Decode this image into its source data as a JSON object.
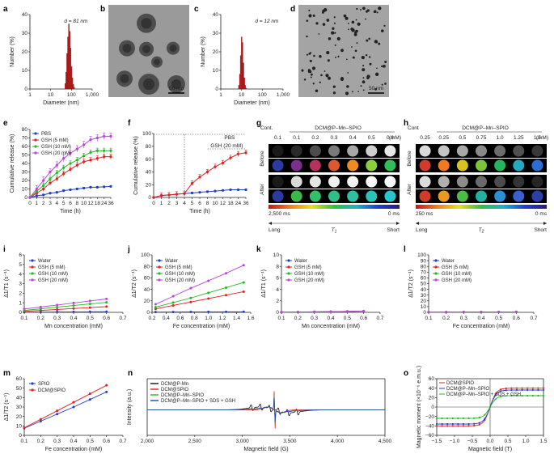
{
  "figure": {
    "panel_labels": [
      "a",
      "b",
      "c",
      "d",
      "e",
      "f",
      "g",
      "h",
      "i",
      "j",
      "k",
      "l",
      "m",
      "n",
      "o"
    ]
  },
  "images": {
    "b": {
      "scalebar": "50 nm"
    },
    "d": {
      "scalebar": "50 nm"
    },
    "g": {
      "cont_label": "Cont.",
      "group_label": "DCM@P–Mn–SPIO",
      "concentrations": [
        "0.1",
        "0.1",
        "0.2",
        "0.3",
        "0.4",
        "0.5",
        "0.6"
      ],
      "unit": "(mM)",
      "row_labels": [
        "Before",
        "After"
      ],
      "colorbar_left": "2,500 ms",
      "colorbar_right": "0 ms",
      "scale_left": "Long",
      "scale_right": "Short",
      "scale_symbol": "T",
      "scale_sub": "1",
      "gray_before": [
        "#1a1a1a",
        "#2a2a2a",
        "#4c4c4c",
        "#7a7a7a",
        "#a8a8a8",
        "#cfcfcf",
        "#e8e8e8"
      ],
      "gray_after": [
        "#1a1a1a",
        "#d9d9d9",
        "#e6e6e6",
        "#efefef",
        "#f4f4f4",
        "#f8f8f8",
        "#fbfbfb"
      ],
      "color_before": [
        "#2b3a9e",
        "#7a2f8a",
        "#b83060",
        "#e0562e",
        "#f08b20",
        "#8ccf3c",
        "#2fbf5a"
      ],
      "color_after": [
        "#2b3a9e",
        "#3cb84a",
        "#33c06a",
        "#2fbf86",
        "#2cc2a0",
        "#29c4b8",
        "#25c6cc"
      ]
    },
    "h": {
      "cont_label": "Cont",
      "group_label": "DCM@P–Mn–SPIO",
      "concentrations": [
        "0.25",
        "0.25",
        "0.5",
        "0.75",
        "1.0",
        "1.25",
        "1.5"
      ],
      "unit": "(mM)",
      "row_labels": [
        "Before",
        "After"
      ],
      "colorbar_left": "250 ms",
      "colorbar_right": "0 ms",
      "scale_left": "Long",
      "scale_right": "Short",
      "scale_symbol": "T",
      "scale_sub": "2",
      "gray_before": [
        "#dcdcdc",
        "#c4c4c4",
        "#a8a8a8",
        "#8a8a8a",
        "#6c6c6c",
        "#505050",
        "#383838"
      ],
      "gray_after": [
        "#dcdcdc",
        "#b0b0b0",
        "#8c8c8c",
        "#6a6a6a",
        "#4c4c4c",
        "#343434",
        "#262626"
      ],
      "color_before": [
        "#d23a2a",
        "#f07a1c",
        "#d9c21e",
        "#7cc43a",
        "#27b45e",
        "#22a9c4",
        "#2a6ed4"
      ],
      "color_after": [
        "#d23a2a",
        "#e89a20",
        "#4cbc44",
        "#22b0a0",
        "#2a8fd4",
        "#3a60d0",
        "#2c3ea8"
      ]
    }
  },
  "chart_data": [
    {
      "id": "a",
      "type": "bar",
      "annotation": "d = 81 nm",
      "xlabel": "Diameter (nm)",
      "ylabel": "Number (%)",
      "xscale": "log",
      "xlim": [
        1,
        1000
      ],
      "ylim": [
        0,
        40
      ],
      "xticks": [
        "1",
        "10",
        "100",
        "1,000"
      ],
      "yticks": [
        "0",
        "10",
        "20",
        "30",
        "40"
      ],
      "color": "#cc1f1f",
      "x": [
        50.7,
        55.9,
        61.7,
        68.1,
        75.1,
        82.9,
        91.5,
        101.0,
        111.4,
        122.9,
        135.7
      ],
      "values": [
        3,
        9,
        19,
        28,
        35,
        31,
        22,
        12,
        6,
        2.5,
        1
      ]
    },
    {
      "id": "c",
      "type": "bar",
      "annotation": "d = 12 nm",
      "xlabel": "Diameter (nm)",
      "ylabel": "Number (%)",
      "xscale": "log",
      "xlim": [
        1,
        1000
      ],
      "ylim": [
        0,
        40
      ],
      "xticks": [
        "1",
        "10",
        "100",
        "1,000"
      ],
      "yticks": [
        "0",
        "10",
        "20",
        "30",
        "40"
      ],
      "color": "#cc1f1f",
      "x": [
        7.5,
        8.3,
        9.1,
        10.1,
        11.1,
        12.3,
        13.6,
        15.0,
        16.5
      ],
      "values": [
        2,
        8,
        18,
        28,
        25,
        14,
        6,
        2,
        0.5
      ]
    },
    {
      "id": "e",
      "type": "line",
      "xlabel": "Time (h)",
      "ylabel": "Cumulative release (%)",
      "ylim": [
        0,
        80
      ],
      "categories": [
        "0",
        "1",
        "2",
        "3",
        "4",
        "5",
        "6",
        "8",
        "10",
        "12",
        "18",
        "24",
        "36"
      ],
      "yticks": [
        "0",
        "10",
        "20",
        "30",
        "40",
        "50",
        "60",
        "70",
        "80"
      ],
      "legend_position": "top-left",
      "series": [
        {
          "name": "PBS",
          "color": "#2140c8",
          "values": [
            0,
            2,
            3,
            5,
            6,
            8,
            9,
            10,
            11,
            12,
            12,
            12.5,
            13
          ],
          "err": 1
        },
        {
          "name": "GSH (5 mM)",
          "color": "#e02020",
          "values": [
            0,
            5,
            10,
            17,
            22,
            28,
            33,
            38,
            42,
            44,
            46,
            48,
            48
          ],
          "err": 3
        },
        {
          "name": "GSH (10 mM)",
          "color": "#22b826",
          "values": [
            0,
            7,
            14,
            22,
            29,
            35,
            40,
            44,
            49,
            53,
            55,
            55,
            55
          ],
          "err": 3
        },
        {
          "name": "GSH (20 mM)",
          "color": "#b845d8",
          "values": [
            0,
            10,
            20,
            30,
            38,
            46,
            52,
            57,
            62,
            68,
            70,
            72,
            72
          ],
          "err": 4
        }
      ]
    },
    {
      "id": "f",
      "type": "line",
      "xlabel": "Time (h)",
      "ylabel": "Cumulative release (%)",
      "ylim": [
        0,
        100
      ],
      "categories": [
        "0",
        "1",
        "2",
        "3",
        "4",
        "5",
        "6",
        "8",
        "10",
        "12",
        "18",
        "24",
        "36"
      ],
      "yticks": [
        "0",
        "20",
        "40",
        "60",
        "80",
        "100"
      ],
      "annotations": [
        "PBS",
        "GSH (20 mM)"
      ],
      "series": [
        {
          "name": "PBS",
          "color": "#2140c8",
          "values": [
            0,
            3,
            4,
            5,
            6,
            7,
            8,
            9,
            10,
            11,
            12,
            12,
            12
          ],
          "err": 1
        },
        {
          "name": "GSH (20 mM)",
          "color": "#e02020",
          "values": [
            0,
            3,
            4,
            5,
            6,
            22,
            32,
            40,
            48,
            54,
            62,
            68,
            70
          ],
          "err": 4
        }
      ]
    },
    {
      "id": "i",
      "type": "line",
      "xlabel": "Mn concentration (mM)",
      "ylabel": "Δ1/T1 (s⁻¹)",
      "xlim": [
        0.1,
        0.7
      ],
      "ylim": [
        0,
        6
      ],
      "xticks": [
        "0.1",
        "0.2",
        "0.3",
        "0.4",
        "0.5",
        "0.6",
        "0.7"
      ],
      "yticks": [
        "0",
        "1",
        "2",
        "3",
        "4",
        "5",
        "6"
      ],
      "legend_position": "top-left",
      "x": [
        0.1,
        0.2,
        0.3,
        0.4,
        0.5,
        0.6
      ],
      "series": [
        {
          "name": "Water",
          "color": "#2140c8",
          "values": [
            0.02,
            0.03,
            0.04,
            0.05,
            0.06,
            0.07
          ]
        },
        {
          "name": "GSH (5 mM)",
          "color": "#e02020",
          "values": [
            0.1,
            0.2,
            0.3,
            0.4,
            0.5,
            0.6
          ]
        },
        {
          "name": "GSH (10 mM)",
          "color": "#22b826",
          "values": [
            0.2,
            0.37,
            0.54,
            0.71,
            0.88,
            1.05
          ]
        },
        {
          "name": "GSH (20 mM)",
          "color": "#b845d8",
          "values": [
            0.35,
            0.56,
            0.77,
            0.98,
            1.19,
            1.4
          ]
        }
      ]
    },
    {
      "id": "j",
      "type": "line",
      "xlabel": "Fe concentration (mM)",
      "ylabel": "Δ1/T2 (s⁻¹)",
      "xlim": [
        0.2,
        1.6
      ],
      "ylim": [
        0,
        100
      ],
      "xticks": [
        "0.2",
        "0.4",
        "0.6",
        "0.8",
        "1.0",
        "1.2",
        "1.4",
        "1.6"
      ],
      "yticks": [
        "0",
        "20",
        "40",
        "60",
        "80",
        "100"
      ],
      "legend_position": "top-left",
      "x": [
        0.25,
        0.5,
        0.75,
        1.0,
        1.25,
        1.5
      ],
      "series": [
        {
          "name": "Water",
          "color": "#2140c8",
          "values": [
            0.5,
            0.6,
            0.7,
            0.8,
            0.9,
            1.0
          ]
        },
        {
          "name": "GSH (5 mM)",
          "color": "#e02020",
          "values": [
            6,
            12,
            18,
            24,
            30,
            36
          ]
        },
        {
          "name": "GSH (10 mM)",
          "color": "#22b826",
          "values": [
            9,
            17,
            25,
            34,
            43,
            52
          ]
        },
        {
          "name": "GSH (20 mM)",
          "color": "#b845d8",
          "values": [
            14,
            28,
            42,
            55,
            68,
            82
          ]
        }
      ]
    },
    {
      "id": "k",
      "type": "line",
      "xlabel": "Mn concentration (mM)",
      "ylabel": "Δ1/T1 (s⁻¹)",
      "xlim": [
        0.1,
        0.7
      ],
      "ylim": [
        0,
        10
      ],
      "xticks": [
        "0.1",
        "0.2",
        "0.3",
        "0.4",
        "0.5",
        "0.6",
        "0.7"
      ],
      "yticks": [
        "0",
        "2",
        "4",
        "6",
        "8",
        "10"
      ],
      "legend_position": "top-left",
      "x": [
        0.1,
        0.2,
        0.3,
        0.4,
        0.5,
        0.6
      ],
      "series": [
        {
          "name": "Water",
          "color": "#2140c8",
          "values": [
            0.02,
            0.05,
            0.08,
            0.11,
            0.15,
            0.2
          ]
        },
        {
          "name": "GSH (5 mM)",
          "color": "#e02020",
          "values": [
            0.03,
            0.06,
            0.09,
            0.12,
            0.16,
            0.21
          ]
        },
        {
          "name": "GSH (10 mM)",
          "color": "#22b826",
          "values": [
            0.03,
            0.06,
            0.09,
            0.12,
            0.16,
            0.21
          ]
        },
        {
          "name": "GSH (20 mM)",
          "color": "#b845d8",
          "values": [
            0.03,
            0.06,
            0.1,
            0.13,
            0.17,
            0.22
          ]
        }
      ]
    },
    {
      "id": "l",
      "type": "line",
      "xlabel": "Fe concentration (mM)",
      "ylabel": "Δ1/T2 (s⁻¹)",
      "xlim": [
        0.1,
        0.7
      ],
      "ylim": [
        0,
        100
      ],
      "xticks": [
        "0.1",
        "0.2",
        "0.3",
        "0.4",
        "0.5",
        "0.6",
        "0.7"
      ],
      "yticks": [
        "0",
        "10",
        "20",
        "30",
        "40",
        "50",
        "60",
        "70",
        "80",
        "90",
        "100"
      ],
      "legend_position": "top-left",
      "x": [
        0.1,
        0.2,
        0.3,
        0.4,
        0.5,
        0.6
      ],
      "series": [
        {
          "name": "Water",
          "color": "#2140c8",
          "values": [
            0.3,
            0.4,
            0.5,
            0.6,
            0.7,
            0.8
          ]
        },
        {
          "name": "GSH (5 mM)",
          "color": "#e02020",
          "values": [
            0.3,
            0.4,
            0.5,
            0.6,
            0.7,
            0.8
          ]
        },
        {
          "name": "GSH (10 mM)",
          "color": "#22b826",
          "values": [
            0.3,
            0.4,
            0.5,
            0.6,
            0.7,
            0.8
          ]
        },
        {
          "name": "GSH (20 mM)",
          "color": "#b845d8",
          "values": [
            0.3,
            0.4,
            0.5,
            0.6,
            0.7,
            0.8
          ]
        }
      ]
    },
    {
      "id": "m",
      "type": "line",
      "xlabel": "Fe concentration (mM)",
      "ylabel": "Δ1/T2 (s⁻¹)",
      "xlim": [
        0.1,
        0.7
      ],
      "ylim": [
        0,
        60
      ],
      "xticks": [
        "0.1",
        "0.2",
        "0.3",
        "0.4",
        "0.5",
        "0.6",
        "0.7"
      ],
      "yticks": [
        "0",
        "10",
        "20",
        "30",
        "40",
        "50",
        "60"
      ],
      "legend_position": "top-left",
      "x": [
        0.1,
        0.2,
        0.3,
        0.4,
        0.5,
        0.6
      ],
      "series": [
        {
          "name": "SPIO",
          "color": "#2140c8",
          "values": [
            7.5,
            15,
            22.5,
            30,
            38,
            46
          ]
        },
        {
          "name": "DCM@SPIO",
          "color": "#e02020",
          "values": [
            8,
            17,
            26,
            35,
            44,
            53
          ]
        }
      ]
    },
    {
      "id": "n",
      "type": "line",
      "xlabel": "Magnetic field (G)",
      "ylabel": "Intensity (a.u.)",
      "xlim": [
        2000,
        4500
      ],
      "xticks": [
        "2,000",
        "2,500",
        "3,000",
        "3,500",
        "4,000",
        "4,500"
      ],
      "legend_position": "top-left",
      "series": [
        {
          "name": "DCM@P-Mn",
          "color": "#111111"
        },
        {
          "name": "DCM@SPIO",
          "color": "#e02020"
        },
        {
          "name": "DCM@P–Mn–SPIO",
          "color": "#22b826"
        },
        {
          "name": "DCM@P–Mn–SPIO + SDS + GSH",
          "color": "#2140c8"
        }
      ]
    },
    {
      "id": "o",
      "type": "line",
      "xlabel": "Magnetic field (T)",
      "ylabel": "Magnetic moment (×10⁻⁶ e.m.u.)",
      "xlim": [
        -1.5,
        1.5
      ],
      "ylim": [
        -60,
        60
      ],
      "xticks": [
        "−1.5",
        "−1.0",
        "−0.5",
        "0.0",
        "0.5",
        "1.0",
        "1.5"
      ],
      "yticks": [
        "−60",
        "−40",
        "−20",
        "0",
        "20",
        "40",
        "60"
      ],
      "legend_position": "top-left",
      "series": [
        {
          "name": "DCM@SPIO",
          "color": "#e02020",
          "ms": 40
        },
        {
          "name": "DCM@P–Mn–SPIO",
          "color": "#2140c8",
          "ms": 36
        },
        {
          "name": "DCM@P–Mn–SPIO + SDS + GSH",
          "color": "#22b826",
          "ms": 24
        }
      ]
    }
  ]
}
